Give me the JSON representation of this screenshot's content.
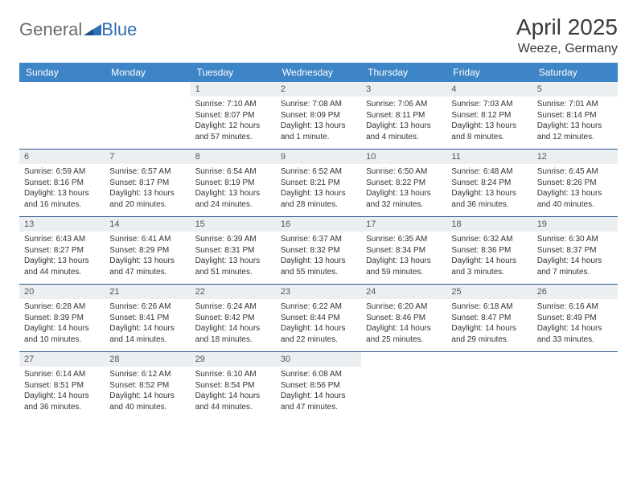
{
  "logo": {
    "text1": "General",
    "text2": "Blue"
  },
  "title": "April 2025",
  "location": "Weeze, Germany",
  "colors": {
    "header_bg": "#3d85c6",
    "header_text": "#ffffff",
    "daynum_bg": "#eceff1",
    "row_divider": "#2d5a8a",
    "logo_gray": "#6a6a6a",
    "logo_blue": "#2d6fb3"
  },
  "weekdays": [
    "Sunday",
    "Monday",
    "Tuesday",
    "Wednesday",
    "Thursday",
    "Friday",
    "Saturday"
  ],
  "weeks": [
    [
      {
        "num": "",
        "sunrise": "",
        "sunset": "",
        "daylight": ""
      },
      {
        "num": "",
        "sunrise": "",
        "sunset": "",
        "daylight": ""
      },
      {
        "num": "1",
        "sunrise": "Sunrise: 7:10 AM",
        "sunset": "Sunset: 8:07 PM",
        "daylight": "Daylight: 12 hours and 57 minutes."
      },
      {
        "num": "2",
        "sunrise": "Sunrise: 7:08 AM",
        "sunset": "Sunset: 8:09 PM",
        "daylight": "Daylight: 13 hours and 1 minute."
      },
      {
        "num": "3",
        "sunrise": "Sunrise: 7:06 AM",
        "sunset": "Sunset: 8:11 PM",
        "daylight": "Daylight: 13 hours and 4 minutes."
      },
      {
        "num": "4",
        "sunrise": "Sunrise: 7:03 AM",
        "sunset": "Sunset: 8:12 PM",
        "daylight": "Daylight: 13 hours and 8 minutes."
      },
      {
        "num": "5",
        "sunrise": "Sunrise: 7:01 AM",
        "sunset": "Sunset: 8:14 PM",
        "daylight": "Daylight: 13 hours and 12 minutes."
      }
    ],
    [
      {
        "num": "6",
        "sunrise": "Sunrise: 6:59 AM",
        "sunset": "Sunset: 8:16 PM",
        "daylight": "Daylight: 13 hours and 16 minutes."
      },
      {
        "num": "7",
        "sunrise": "Sunrise: 6:57 AM",
        "sunset": "Sunset: 8:17 PM",
        "daylight": "Daylight: 13 hours and 20 minutes."
      },
      {
        "num": "8",
        "sunrise": "Sunrise: 6:54 AM",
        "sunset": "Sunset: 8:19 PM",
        "daylight": "Daylight: 13 hours and 24 minutes."
      },
      {
        "num": "9",
        "sunrise": "Sunrise: 6:52 AM",
        "sunset": "Sunset: 8:21 PM",
        "daylight": "Daylight: 13 hours and 28 minutes."
      },
      {
        "num": "10",
        "sunrise": "Sunrise: 6:50 AM",
        "sunset": "Sunset: 8:22 PM",
        "daylight": "Daylight: 13 hours and 32 minutes."
      },
      {
        "num": "11",
        "sunrise": "Sunrise: 6:48 AM",
        "sunset": "Sunset: 8:24 PM",
        "daylight": "Daylight: 13 hours and 36 minutes."
      },
      {
        "num": "12",
        "sunrise": "Sunrise: 6:45 AM",
        "sunset": "Sunset: 8:26 PM",
        "daylight": "Daylight: 13 hours and 40 minutes."
      }
    ],
    [
      {
        "num": "13",
        "sunrise": "Sunrise: 6:43 AM",
        "sunset": "Sunset: 8:27 PM",
        "daylight": "Daylight: 13 hours and 44 minutes."
      },
      {
        "num": "14",
        "sunrise": "Sunrise: 6:41 AM",
        "sunset": "Sunset: 8:29 PM",
        "daylight": "Daylight: 13 hours and 47 minutes."
      },
      {
        "num": "15",
        "sunrise": "Sunrise: 6:39 AM",
        "sunset": "Sunset: 8:31 PM",
        "daylight": "Daylight: 13 hours and 51 minutes."
      },
      {
        "num": "16",
        "sunrise": "Sunrise: 6:37 AM",
        "sunset": "Sunset: 8:32 PM",
        "daylight": "Daylight: 13 hours and 55 minutes."
      },
      {
        "num": "17",
        "sunrise": "Sunrise: 6:35 AM",
        "sunset": "Sunset: 8:34 PM",
        "daylight": "Daylight: 13 hours and 59 minutes."
      },
      {
        "num": "18",
        "sunrise": "Sunrise: 6:32 AM",
        "sunset": "Sunset: 8:36 PM",
        "daylight": "Daylight: 14 hours and 3 minutes."
      },
      {
        "num": "19",
        "sunrise": "Sunrise: 6:30 AM",
        "sunset": "Sunset: 8:37 PM",
        "daylight": "Daylight: 14 hours and 7 minutes."
      }
    ],
    [
      {
        "num": "20",
        "sunrise": "Sunrise: 6:28 AM",
        "sunset": "Sunset: 8:39 PM",
        "daylight": "Daylight: 14 hours and 10 minutes."
      },
      {
        "num": "21",
        "sunrise": "Sunrise: 6:26 AM",
        "sunset": "Sunset: 8:41 PM",
        "daylight": "Daylight: 14 hours and 14 minutes."
      },
      {
        "num": "22",
        "sunrise": "Sunrise: 6:24 AM",
        "sunset": "Sunset: 8:42 PM",
        "daylight": "Daylight: 14 hours and 18 minutes."
      },
      {
        "num": "23",
        "sunrise": "Sunrise: 6:22 AM",
        "sunset": "Sunset: 8:44 PM",
        "daylight": "Daylight: 14 hours and 22 minutes."
      },
      {
        "num": "24",
        "sunrise": "Sunrise: 6:20 AM",
        "sunset": "Sunset: 8:46 PM",
        "daylight": "Daylight: 14 hours and 25 minutes."
      },
      {
        "num": "25",
        "sunrise": "Sunrise: 6:18 AM",
        "sunset": "Sunset: 8:47 PM",
        "daylight": "Daylight: 14 hours and 29 minutes."
      },
      {
        "num": "26",
        "sunrise": "Sunrise: 6:16 AM",
        "sunset": "Sunset: 8:49 PM",
        "daylight": "Daylight: 14 hours and 33 minutes."
      }
    ],
    [
      {
        "num": "27",
        "sunrise": "Sunrise: 6:14 AM",
        "sunset": "Sunset: 8:51 PM",
        "daylight": "Daylight: 14 hours and 36 minutes."
      },
      {
        "num": "28",
        "sunrise": "Sunrise: 6:12 AM",
        "sunset": "Sunset: 8:52 PM",
        "daylight": "Daylight: 14 hours and 40 minutes."
      },
      {
        "num": "29",
        "sunrise": "Sunrise: 6:10 AM",
        "sunset": "Sunset: 8:54 PM",
        "daylight": "Daylight: 14 hours and 44 minutes."
      },
      {
        "num": "30",
        "sunrise": "Sunrise: 6:08 AM",
        "sunset": "Sunset: 8:56 PM",
        "daylight": "Daylight: 14 hours and 47 minutes."
      },
      {
        "num": "",
        "sunrise": "",
        "sunset": "",
        "daylight": ""
      },
      {
        "num": "",
        "sunrise": "",
        "sunset": "",
        "daylight": ""
      },
      {
        "num": "",
        "sunrise": "",
        "sunset": "",
        "daylight": ""
      }
    ]
  ]
}
